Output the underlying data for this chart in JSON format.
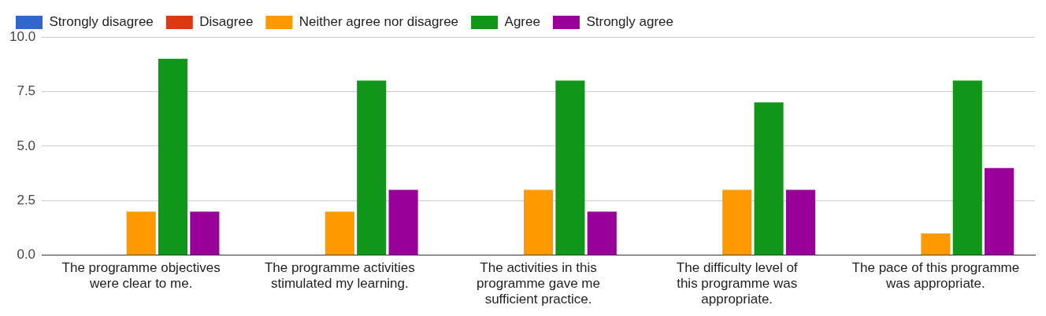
{
  "chart_data": {
    "type": "bar",
    "categories": [
      "The programme objectives were clear to me.",
      "The programme activities stimulated my learning.",
      "The activities in this programme gave me sufficient practice.",
      "The difficulty level of this programme was appropriate.",
      "The pace of this programme was appropriate."
    ],
    "series": [
      {
        "name": "Strongly disagree",
        "color": "#3366cc",
        "values": [
          0,
          0,
          0,
          0,
          0
        ]
      },
      {
        "name": "Disagree",
        "color": "#dc3912",
        "values": [
          0,
          0,
          0,
          0,
          0
        ]
      },
      {
        "name": "Neither agree nor disagree",
        "color": "#ff9900",
        "values": [
          2,
          2,
          3,
          3,
          1
        ]
      },
      {
        "name": "Agree",
        "color": "#109618",
        "values": [
          9,
          8,
          8,
          7,
          8
        ]
      },
      {
        "name": "Strongly agree",
        "color": "#990099",
        "values": [
          2,
          3,
          2,
          3,
          4
        ]
      }
    ],
    "ylim": [
      0,
      10
    ],
    "yticks": [
      {
        "value": 0,
        "label": "0.0"
      },
      {
        "value": 2.5,
        "label": "2.5"
      },
      {
        "value": 5,
        "label": "5.0"
      },
      {
        "value": 7.5,
        "label": "7.5"
      },
      {
        "value": 10,
        "label": "10.0"
      }
    ],
    "grid": "y",
    "legend": "top left"
  }
}
